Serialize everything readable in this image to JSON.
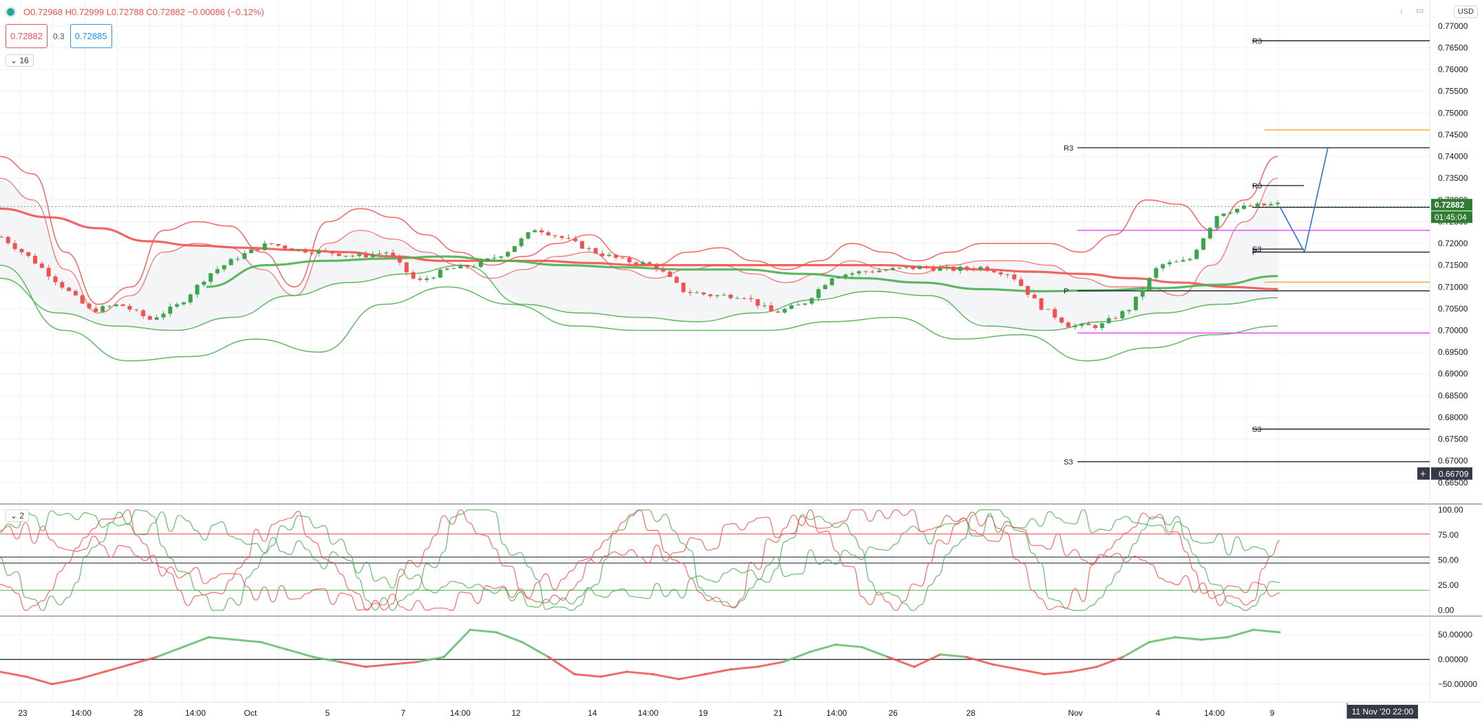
{
  "header": {
    "ohlc_text": "O0.72968 H0.72999 L0.72788 C0.72882 −0.00086 (−0.12%)",
    "bid": "0.72882",
    "spread": "0.3",
    "ask": "0.72885",
    "indicator_count": "16",
    "currency": "USD"
  },
  "pane2": {
    "indicator_count": "2"
  },
  "crosshair": {
    "date_label": "11 Nov '20  22:00"
  },
  "colors": {
    "up": "#26a69a",
    "up_candle": "#3aa54a",
    "down": "#ef5350",
    "blue": "#2a6fdb",
    "orange": "#f6a623",
    "magenta": "#e040fb"
  },
  "chart_data": [
    {
      "type": "candlestick",
      "name": "price",
      "title": "",
      "x_tick_labels": [
        "23",
        "14:00",
        "28",
        "14:00",
        "Oct",
        "5",
        "7",
        "14:00",
        "12",
        "14",
        "14:00",
        "19",
        "21",
        "14:00",
        "26",
        "28",
        "Nov",
        "4",
        "14:00",
        "9"
      ],
      "y_tick_labels": [
        "0.77000",
        "0.76500",
        "0.76000",
        "0.75500",
        "0.75000",
        "0.74500",
        "0.74000",
        "0.73500",
        "0.73000",
        "0.72500",
        "0.72000",
        "0.71500",
        "0.71000",
        "0.70500",
        "0.70000",
        "0.69500",
        "0.69000",
        "0.68500",
        "0.68000",
        "0.67500",
        "0.67000",
        "0.66500"
      ],
      "ylim": [
        0.6645,
        0.7725
      ],
      "last_price": 0.72882,
      "last_price_label": "0.72882",
      "countdown_label": "01:45:04",
      "crosshair_price_label": "0.66709",
      "pivot_labels": [
        {
          "label": "R3",
          "value": 0.7666
        },
        {
          "label": "R3",
          "value": 0.742
        },
        {
          "label": "R3",
          "value": 0.7333
        },
        {
          "label": "S3",
          "value": 0.7187
        },
        {
          "label": "P",
          "value": 0.718
        },
        {
          "label": "P",
          "value": 0.7091
        },
        {
          "label": "S3",
          "value": 0.6773
        },
        {
          "label": "S3",
          "value": 0.6698
        }
      ],
      "horizontal_lines": [
        {
          "value": 0.7461,
          "color": "orange"
        },
        {
          "value": 0.7111,
          "color": "orange"
        },
        {
          "value": 0.723,
          "color": "magenta"
        },
        {
          "value": 0.6994,
          "color": "magenta"
        },
        {
          "value": 0.7283,
          "color": "black"
        }
      ],
      "forecast_path": [
        0.7285,
        0.718,
        0.742
      ],
      "ohlc_anchor_closes": [
        0.7215,
        0.7165,
        0.7105,
        0.7045,
        0.706,
        0.7025,
        0.706,
        0.713,
        0.717,
        0.72,
        0.7185,
        0.718,
        0.717,
        0.718,
        0.711,
        0.714,
        0.715,
        0.718,
        0.7235,
        0.721,
        0.718,
        0.716,
        0.715,
        0.709,
        0.708,
        0.708,
        0.704,
        0.706,
        0.7125,
        0.7135,
        0.714,
        0.7145,
        0.714,
        0.7145,
        0.713,
        0.7055,
        0.701,
        0.701,
        0.705,
        0.715,
        0.716,
        0.727,
        0.7285,
        0.729
      ],
      "bands": {
        "upper_red_outer": [
          0.74,
          0.736,
          0.718,
          0.706,
          0.71,
          0.723,
          0.725,
          0.724,
          0.718,
          0.71,
          0.725,
          0.728,
          0.726,
          0.722,
          0.718,
          0.715,
          0.717,
          0.72,
          0.722,
          0.717,
          0.715,
          0.718,
          0.719,
          0.716,
          0.714,
          0.716,
          0.72,
          0.718,
          0.716,
          0.718,
          0.72,
          0.72,
          0.72,
          0.718,
          0.722,
          0.73,
          0.729,
          0.723,
          0.73,
          0.74
        ],
        "upper_red_inner": [
          0.735,
          0.73,
          0.714,
          0.704,
          0.708,
          0.718,
          0.72,
          0.719,
          0.714,
          0.708,
          0.72,
          0.723,
          0.721,
          0.718,
          0.715,
          0.712,
          0.714,
          0.717,
          0.718,
          0.714,
          0.712,
          0.714,
          0.715,
          0.713,
          0.711,
          0.713,
          0.716,
          0.714,
          0.713,
          0.715,
          0.716,
          0.716,
          0.715,
          0.712,
          0.71,
          0.71,
          0.708,
          0.715,
          0.725,
          0.735
        ],
        "ma_red": [
          0.728,
          0.726,
          0.7235,
          0.7205,
          0.7195,
          0.719,
          0.7185,
          0.718,
          0.717,
          0.716,
          0.716,
          0.716,
          0.7155,
          0.715,
          0.715,
          0.715,
          0.715,
          0.715,
          0.715,
          0.7145,
          0.714,
          0.7135,
          0.713,
          0.712,
          0.711,
          0.71,
          0.7095
        ],
        "ma_green": [
          0.71,
          0.715,
          0.716,
          0.7165,
          0.717,
          0.716,
          0.715,
          0.7145,
          0.714,
          0.714,
          0.713,
          0.712,
          0.711,
          0.7095,
          0.709,
          0.7092,
          0.7097,
          0.7105,
          0.7125
        ],
        "lower_green_inner": [
          0.712,
          0.704,
          0.701,
          0.7,
          0.703,
          0.708,
          0.711,
          0.713,
          0.715,
          0.706,
          0.704,
          0.703,
          0.702,
          0.704,
          0.707,
          0.709,
          0.708,
          0.701,
          0.7,
          0.702,
          0.704,
          0.706,
          0.7075
        ],
        "lower_green_outer": [
          0.715,
          0.7,
          0.693,
          0.694,
          0.698,
          0.695,
          0.706,
          0.71,
          0.706,
          0.701,
          0.7,
          0.7,
          0.7,
          0.702,
          0.703,
          0.698,
          0.699,
          0.693,
          0.696,
          0.699,
          0.701
        ]
      }
    },
    {
      "type": "line",
      "name": "stochastic",
      "y_tick_labels": [
        "100.00",
        "75.00",
        "50.00",
        "25.00",
        "0.00"
      ],
      "ylim": [
        -5,
        105
      ],
      "levels": [
        76,
        53,
        47,
        20
      ]
    },
    {
      "type": "line",
      "name": "oscillator",
      "y_tick_labels": [
        "50.00000",
        "0.00000",
        "−50.00000"
      ],
      "ylim": [
        -85,
        85
      ],
      "zero_line": 0
    }
  ]
}
